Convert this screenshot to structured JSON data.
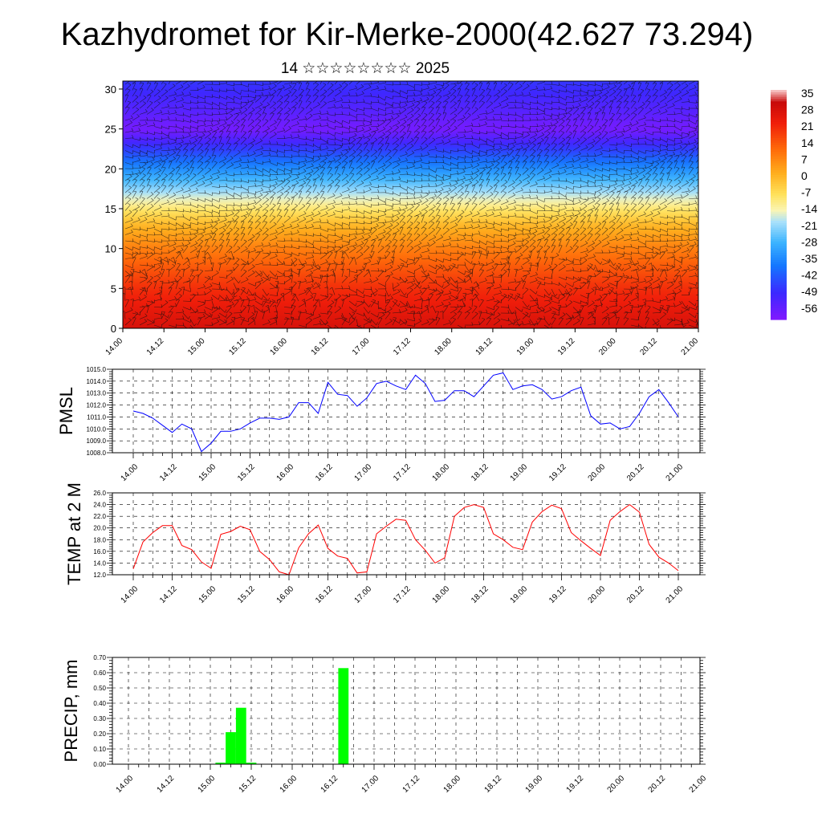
{
  "header": {
    "title": "Kazhydromet for Kir-Merke-2000(42.627 73.294)",
    "subtitle": "14 ☆☆☆☆☆☆☆☆ 2025"
  },
  "time_ticks": [
    "14.00",
    "14.12",
    "15.00",
    "15.12",
    "16.00",
    "16.12",
    "17.00",
    "17.12",
    "18.00",
    "18.12",
    "19.00",
    "19.12",
    "20.00",
    "20.12",
    "21.00"
  ],
  "chart_data": [
    {
      "type": "heatmap",
      "name": "vertical-temperature-section",
      "x_ticks": [
        "14.00",
        "14.12",
        "15.00",
        "15.12",
        "16.00",
        "16.12",
        "17.00",
        "17.12",
        "18.00",
        "18.12",
        "19.00",
        "19.12",
        "20.00",
        "20.12",
        "21.00"
      ],
      "y_ticks": [
        0,
        5,
        10,
        15,
        20,
        25,
        30
      ],
      "ylim": [
        0,
        31
      ],
      "colorbar": {
        "labels": [
          "35",
          "28",
          "21",
          "14",
          "7",
          "0",
          "-7",
          "-14",
          "-21",
          "-28",
          "-35",
          "-42",
          "-49",
          "-56"
        ],
        "range": [
          -60,
          38
        ]
      },
      "profile_levels": [
        0,
        5,
        10,
        13,
        15,
        17,
        19,
        21,
        23,
        25,
        27,
        31
      ],
      "profile_temps": [
        30,
        22,
        10,
        1,
        -8,
        -18,
        -28,
        -38,
        -48,
        -58,
        -53,
        -46
      ],
      "wind_barbs": true
    },
    {
      "type": "line",
      "ylabel": "PMSL",
      "ylim": [
        1008.0,
        1015.0
      ],
      "y_ticks": [
        "1008.0",
        "1009.0",
        "1010.0",
        "1011.0",
        "1012.0",
        "1013.0",
        "1014.0",
        "1015.0"
      ],
      "x_ticks": [
        "14.00",
        "14.12",
        "15.00",
        "15.12",
        "16.00",
        "16.12",
        "17.00",
        "17.12",
        "18.00",
        "18.12",
        "19.00",
        "19.12",
        "20.00",
        "20.12",
        "21.00"
      ],
      "color": "#0000ff",
      "values": [
        1011.5,
        1011.3,
        1010.9,
        1010.3,
        1009.7,
        1010.4,
        1010.0,
        1008.1,
        1008.8,
        1009.8,
        1009.8,
        1010.0,
        1010.5,
        1010.9,
        1010.9,
        1010.8,
        1011.0,
        1012.2,
        1012.2,
        1011.3,
        1013.9,
        1012.9,
        1012.8,
        1011.9,
        1012.6,
        1013.8,
        1014.0,
        1013.6,
        1013.3,
        1014.5,
        1013.8,
        1012.3,
        1012.4,
        1013.2,
        1013.2,
        1012.7,
        1013.6,
        1014.5,
        1014.7,
        1013.3,
        1013.6,
        1013.7,
        1013.3,
        1012.5,
        1012.7,
        1013.2,
        1013.5,
        1011.1,
        1010.4,
        1010.5,
        1010.0,
        1010.2,
        1011.3,
        1012.7,
        1013.3,
        1012.2,
        1011.0
      ]
    },
    {
      "type": "line",
      "ylabel": "TEMP at 2 M",
      "ylim": [
        12.0,
        26.0
      ],
      "y_ticks": [
        "12.0",
        "14.0",
        "16.0",
        "18.0",
        "20.0",
        "22.0",
        "24.0",
        "26.0"
      ],
      "x_ticks": [
        "14.00",
        "14.12",
        "15.00",
        "15.12",
        "16.00",
        "16.12",
        "17.00",
        "17.12",
        "18.00",
        "18.12",
        "19.00",
        "19.12",
        "20.00",
        "20.12",
        "21.00"
      ],
      "color": "#ff0000",
      "values": [
        13.0,
        17.6,
        19.2,
        20.4,
        20.4,
        17.0,
        16.3,
        14.2,
        13.1,
        18.9,
        19.4,
        20.3,
        19.7,
        16.0,
        14.6,
        12.5,
        12.0,
        16.6,
        19.0,
        20.5,
        16.5,
        15.2,
        14.8,
        12.3,
        12.5,
        19.0,
        20.3,
        21.5,
        21.3,
        18.0,
        16.2,
        14.0,
        14.9,
        22.0,
        23.5,
        24.0,
        23.5,
        19.0,
        18.0,
        16.7,
        16.3,
        21.0,
        22.8,
        23.9,
        23.3,
        19.2,
        17.8,
        16.5,
        15.3,
        21.3,
        22.8,
        24.0,
        22.7,
        17.2,
        15.0,
        14.0,
        12.7
      ]
    },
    {
      "type": "bar",
      "ylabel": "PRECIP, mm",
      "ylim": [
        0.0,
        0.7
      ],
      "y_ticks": [
        "0.00",
        "0.10",
        "0.20",
        "0.30",
        "0.40",
        "0.50",
        "0.60",
        "0.70"
      ],
      "x_ticks": [
        "14.00",
        "14.12",
        "15.00",
        "15.12",
        "16.00",
        "16.12",
        "17.00",
        "17.12",
        "18.00",
        "18.12",
        "19.00",
        "19.12",
        "20.00",
        "20.12",
        "21.00"
      ],
      "color": "#00ff00",
      "bars": [
        {
          "t": 9,
          "value": 0.01
        },
        {
          "t": 10,
          "value": 0.21
        },
        {
          "t": 11,
          "value": 0.37
        },
        {
          "t": 12,
          "value": 0.01
        },
        {
          "t": 21,
          "value": 0.63
        }
      ]
    }
  ]
}
